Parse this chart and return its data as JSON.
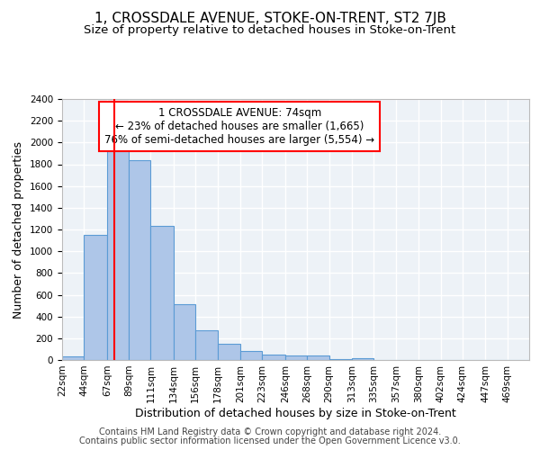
{
  "title": "1, CROSSDALE AVENUE, STOKE-ON-TRENT, ST2 7JB",
  "subtitle": "Size of property relative to detached houses in Stoke-on-Trent",
  "xlabel": "Distribution of detached houses by size in Stoke-on-Trent",
  "ylabel": "Number of detached properties",
  "footnote1": "Contains HM Land Registry data © Crown copyright and database right 2024.",
  "footnote2": "Contains public sector information licensed under the Open Government Licence v3.0.",
  "annotation_line1": "1 CROSSDALE AVENUE: 74sqm",
  "annotation_line2": "← 23% of detached houses are smaller (1,665)",
  "annotation_line3": "76% of semi-detached houses are larger (5,554) →",
  "bar_color": "#aec6e8",
  "bar_edge_color": "#5b9bd5",
  "red_line_x": 74,
  "categories": [
    "22sqm",
    "44sqm",
    "67sqm",
    "89sqm",
    "111sqm",
    "134sqm",
    "156sqm",
    "178sqm",
    "201sqm",
    "223sqm",
    "246sqm",
    "268sqm",
    "290sqm",
    "313sqm",
    "335sqm",
    "357sqm",
    "380sqm",
    "402sqm",
    "424sqm",
    "447sqm",
    "469sqm"
  ],
  "bin_edges": [
    22,
    44,
    67,
    89,
    111,
    134,
    156,
    178,
    201,
    223,
    246,
    268,
    290,
    313,
    335,
    357,
    380,
    402,
    424,
    447,
    469,
    491
  ],
  "values": [
    30,
    1150,
    1950,
    1840,
    1230,
    510,
    270,
    150,
    80,
    50,
    40,
    40,
    10,
    15,
    4,
    2,
    2,
    1,
    1,
    0,
    0
  ],
  "ylim": [
    0,
    2400
  ],
  "yticks": [
    0,
    200,
    400,
    600,
    800,
    1000,
    1200,
    1400,
    1600,
    1800,
    2000,
    2200,
    2400
  ],
  "bg_color": "#edf2f7",
  "grid_color": "#ffffff",
  "title_fontsize": 11,
  "subtitle_fontsize": 9.5,
  "axis_label_fontsize": 9,
  "tick_fontsize": 7.5,
  "annotation_fontsize": 8.5,
  "footnote_fontsize": 7
}
